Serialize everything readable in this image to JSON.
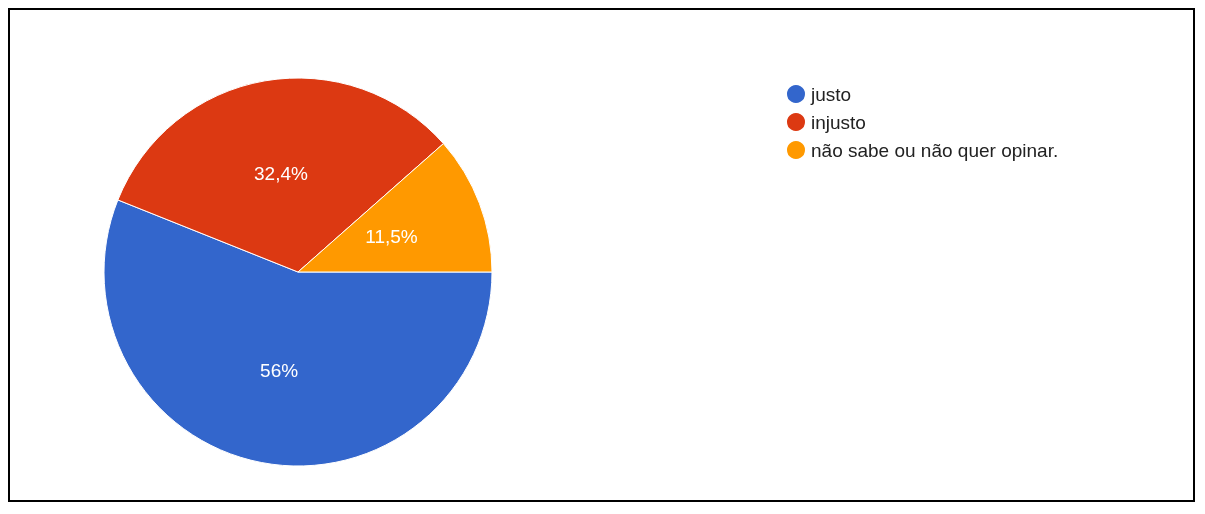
{
  "chart_data": {
    "type": "pie",
    "categories": [
      "justo",
      "injusto",
      "não sabe ou não quer opinar."
    ],
    "values": [
      56,
      32.4,
      11.5
    ],
    "colors": [
      "#3366cc",
      "#dc3912",
      "#ff9900"
    ],
    "value_labels": [
      "56%",
      "32,4%",
      "11,5%"
    ],
    "legend": "top right"
  }
}
